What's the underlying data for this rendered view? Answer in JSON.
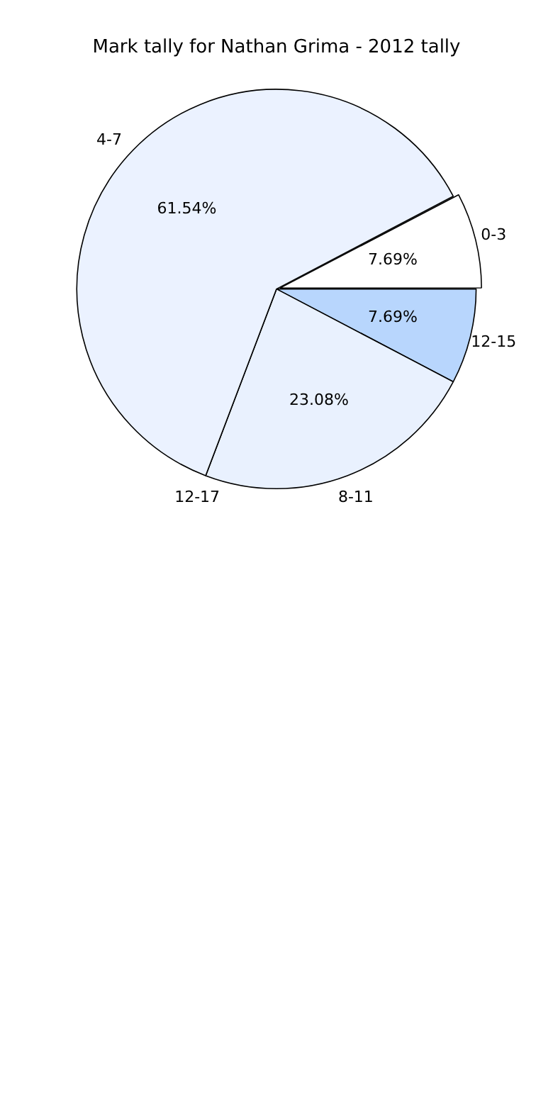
{
  "chart_data": {
    "type": "pie",
    "title": "Mark tally for Nathan Grima - 2012 tally",
    "categories": [
      "12-15",
      "8-11",
      "12-17",
      "4-7",
      "0-3"
    ],
    "values": [
      7.69,
      23.08,
      0,
      61.54,
      7.69
    ],
    "value_labels": [
      "7.69%",
      "23.08%",
      null,
      "61.54%",
      "7.69%"
    ],
    "colors": [
      "#b8d6fd",
      "#e9f1fe",
      "#c9ddf7",
      "#ebf2ff",
      "#ffffff"
    ],
    "legend": false
  }
}
